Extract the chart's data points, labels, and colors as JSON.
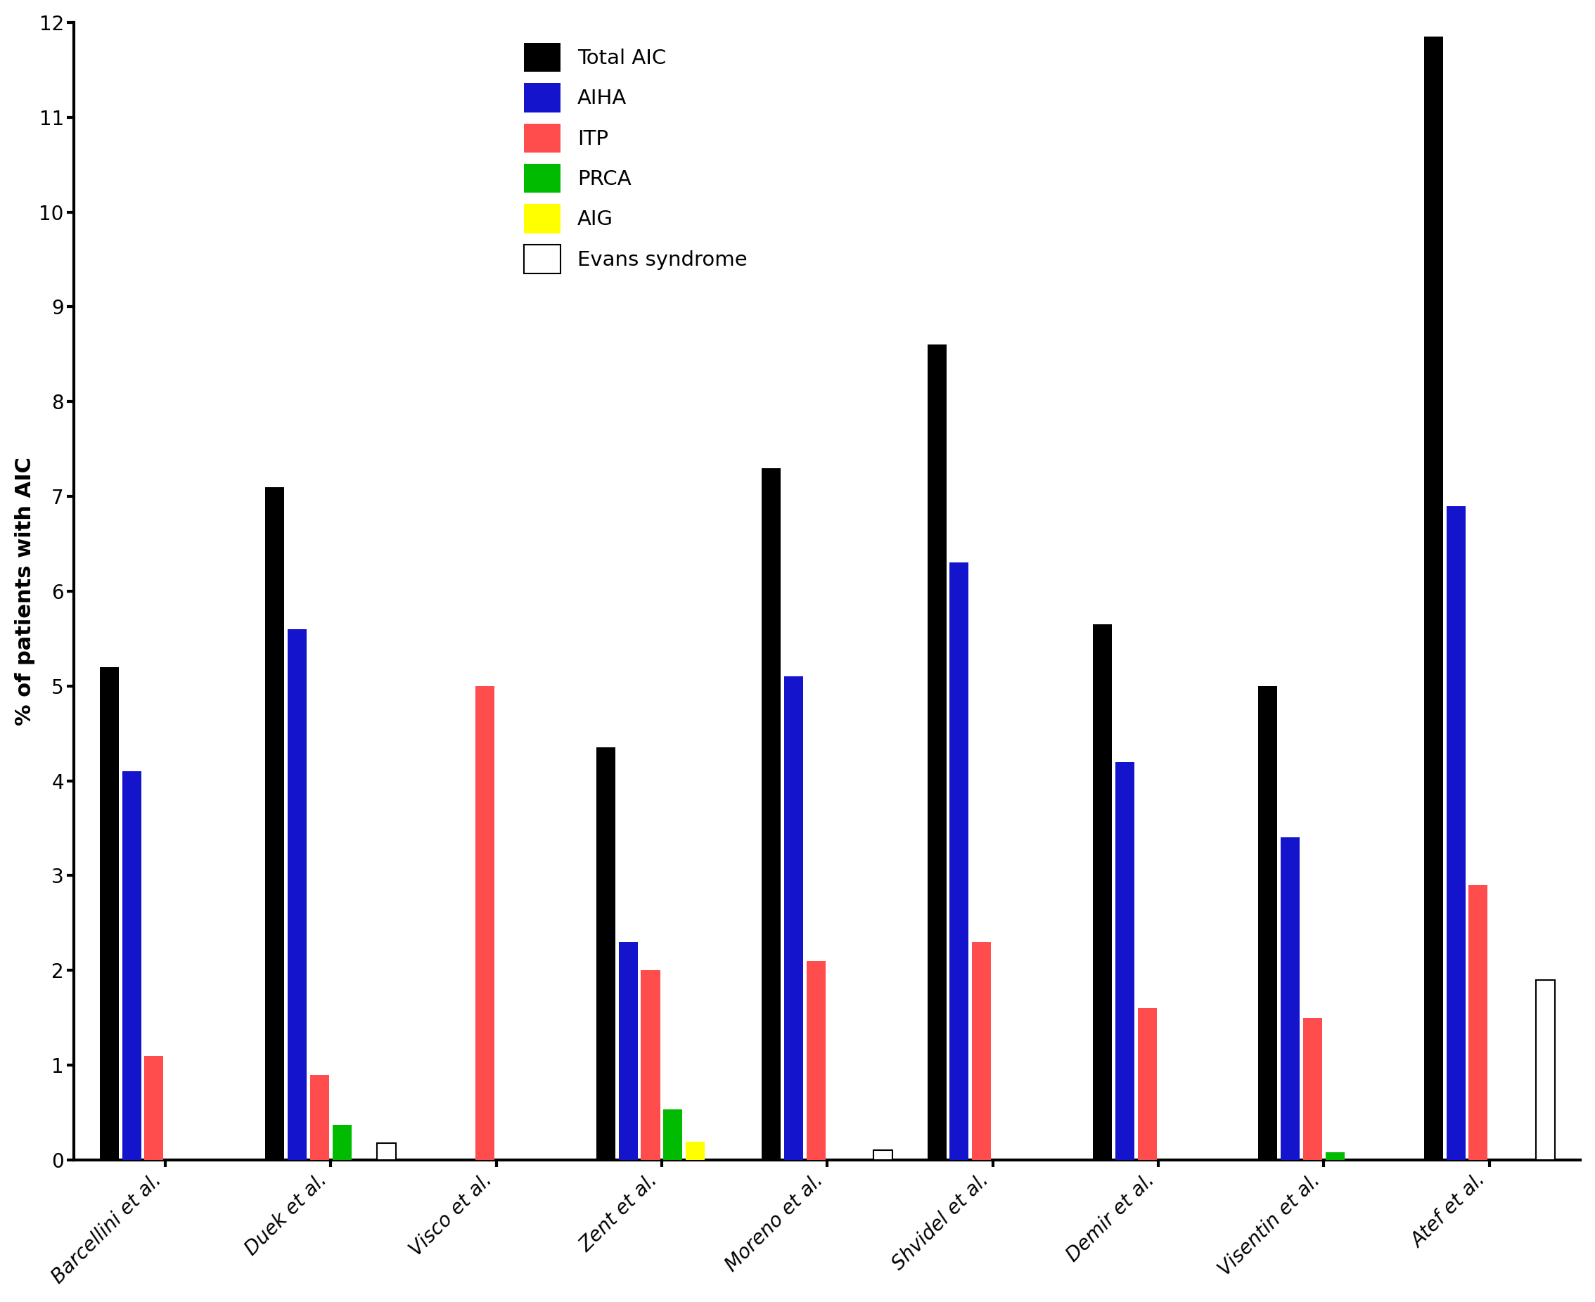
{
  "categories": [
    "Barcellini et al.",
    "Duek et al.",
    "Visco et al.",
    "Zent et al.",
    "Moreno et al.",
    "Shvidel et al.",
    "Demir et al.",
    "Visentin et al.",
    "Atef et al."
  ],
  "series_names": [
    "Total AIC",
    "AIHA",
    "ITP",
    "PRCA",
    "AIG",
    "Evans syndrome"
  ],
  "series_values": [
    [
      5.2,
      7.1,
      0.0,
      4.35,
      7.3,
      8.6,
      5.65,
      5.0,
      11.85
    ],
    [
      4.1,
      5.6,
      0.0,
      2.3,
      5.1,
      6.3,
      4.2,
      3.4,
      6.9
    ],
    [
      1.1,
      0.9,
      5.0,
      2.0,
      2.1,
      2.3,
      1.6,
      1.5,
      2.9
    ],
    [
      0.0,
      0.37,
      0.0,
      0.53,
      0.0,
      0.0,
      0.0,
      0.08,
      0.0
    ],
    [
      0.0,
      0.0,
      0.0,
      0.19,
      0.0,
      0.0,
      0.0,
      0.0,
      0.0
    ],
    [
      0.0,
      0.18,
      0.0,
      0.0,
      0.1,
      0.0,
      0.0,
      0.0,
      1.9
    ]
  ],
  "colors": [
    "#000000",
    "#1414cc",
    "#ff4c4c",
    "#00bb00",
    "#ffff00",
    "#ffffff"
  ],
  "edgecolors": [
    "none",
    "none",
    "none",
    "none",
    "none",
    "#000000"
  ],
  "ylabel": "% of patients with AIC",
  "ylim": [
    0,
    12
  ],
  "yticks": [
    0,
    1,
    2,
    3,
    4,
    5,
    6,
    7,
    8,
    9,
    10,
    11,
    12
  ],
  "background_color": "#ffffff",
  "bar_width": 0.115,
  "bar_spacing": 0.135,
  "fontsize_ticks": 20,
  "fontsize_ylabel": 22,
  "fontsize_legend": 21
}
